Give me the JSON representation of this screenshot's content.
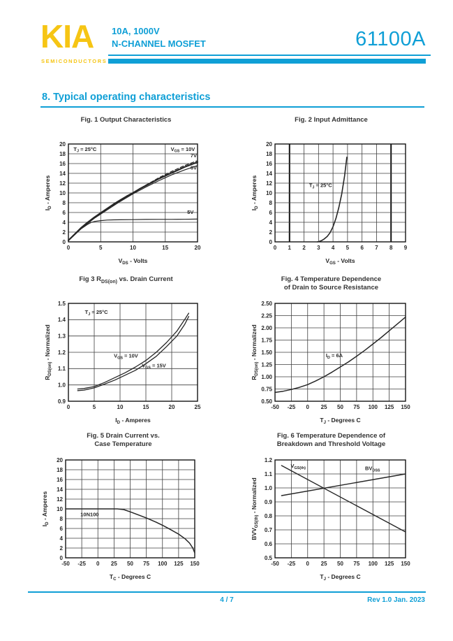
{
  "header": {
    "logo": "KIA",
    "logo_sub": "SEMICONDUCTORS",
    "subtitle_line1": "10A,  1000V",
    "subtitle_line2": "N-CHANNEL MOSFET",
    "part_number": "61100A"
  },
  "section_title": "8. Typical operating characteristics",
  "footer": {
    "page": "4 / 7",
    "revision": "Rev 1.0 Jan. 2023"
  },
  "colors": {
    "accent_cyan": "#0f9fd6",
    "brand_yellow": "#f6c514",
    "chart_ink": "#262626",
    "chart_grid": "#3f3f3f"
  },
  "chart_data": [
    {
      "type": "line",
      "title": "Fig. 1  Output Characteristics",
      "xlabel": "V~DS~ - Volts",
      "ylabel": "I~D~ - Amperes",
      "xlim": [
        0,
        20
      ],
      "ylim": [
        0,
        20
      ],
      "xticks": [
        0,
        5,
        10,
        15,
        20
      ],
      "yticks": [
        0,
        2,
        4,
        6,
        8,
        10,
        12,
        14,
        16,
        18,
        20
      ],
      "xdec": 0,
      "ydec": 0,
      "series": [
        {
          "name": "VGS = 10V",
          "width": 2.2,
          "dash": false,
          "points": [
            [
              0,
              0.3
            ],
            [
              1,
              1.6
            ],
            [
              2,
              2.9
            ],
            [
              3,
              4.0
            ],
            [
              4,
              5.0
            ],
            [
              5,
              5.9
            ],
            [
              6,
              6.8
            ],
            [
              7,
              7.7
            ],
            [
              8,
              8.5
            ],
            [
              9,
              9.3
            ],
            [
              10,
              10.0
            ],
            [
              11,
              10.8
            ],
            [
              12,
              11.5
            ],
            [
              13,
              12.2
            ],
            [
              14,
              12.9
            ],
            [
              15,
              13.5
            ],
            [
              16,
              14.1
            ],
            [
              17,
              14.7
            ],
            [
              18,
              15.3
            ],
            [
              19,
              15.8
            ],
            [
              20,
              16.3
            ]
          ]
        },
        {
          "name": "VGS = 7V",
          "width": 1.2,
          "dash": true,
          "points": [
            [
              0,
              0.3
            ],
            [
              2,
              2.8
            ],
            [
              4,
              4.9
            ],
            [
              6,
              6.7
            ],
            [
              8,
              8.4
            ],
            [
              10,
              10.0
            ],
            [
              12,
              11.6
            ],
            [
              14,
              13.1
            ],
            [
              16,
              14.4
            ],
            [
              18,
              15.6
            ],
            [
              20,
              16.6
            ]
          ]
        },
        {
          "name": "VGS = 6V",
          "width": 1.2,
          "dash": false,
          "points": [
            [
              0,
              0.3
            ],
            [
              2,
              2.75
            ],
            [
              4,
              4.8
            ],
            [
              6,
              6.55
            ],
            [
              8,
              8.25
            ],
            [
              10,
              9.8
            ],
            [
              12,
              11.2
            ],
            [
              14,
              12.5
            ],
            [
              16,
              13.7
            ],
            [
              18,
              14.7
            ],
            [
              20,
              15.6
            ]
          ]
        },
        {
          "name": "VGS = 5V",
          "width": 1.2,
          "dash": false,
          "points": [
            [
              0,
              0.3
            ],
            [
              1,
              1.5
            ],
            [
              2,
              2.7
            ],
            [
              3,
              3.6
            ],
            [
              3.5,
              3.95
            ],
            [
              4,
              4.15
            ],
            [
              5,
              4.35
            ],
            [
              6,
              4.45
            ],
            [
              7,
              4.5
            ],
            [
              8,
              4.52
            ],
            [
              10,
              4.55
            ],
            [
              12,
              4.58
            ],
            [
              14,
              4.6
            ],
            [
              16,
              4.6
            ],
            [
              18,
              4.62
            ],
            [
              20,
              4.65
            ]
          ]
        }
      ],
      "annotations": [
        {
          "text": "T~J~ = 25°C",
          "x": 0.8,
          "y": 18.6,
          "anchor": "start"
        },
        {
          "text": "V~GS~ = 10V",
          "x": 19.6,
          "y": 18.6,
          "anchor": "end"
        },
        {
          "text": "7V",
          "x": 19.9,
          "y": 17.3,
          "anchor": "end"
        },
        {
          "text": "6V",
          "x": 19.9,
          "y": 14.8,
          "anchor": "end"
        },
        {
          "text": "5V",
          "x": 19.4,
          "y": 5.7,
          "anchor": "end"
        }
      ]
    },
    {
      "type": "line",
      "title": "Fig. 2   Input Admittance",
      "xlabel": "V~GS~ - Volts",
      "ylabel": "I~D~ - Amperes",
      "xlim": [
        0,
        9
      ],
      "ylim": [
        0,
        20
      ],
      "xticks": [
        0,
        1,
        2,
        3,
        4,
        5,
        6,
        7,
        8,
        9
      ],
      "yticks": [
        0,
        2,
        4,
        6,
        8,
        10,
        12,
        14,
        16,
        18,
        20
      ],
      "x_bold": [
        1,
        8
      ],
      "xdec": 0,
      "ydec": 0,
      "series": [
        {
          "name": "ID vs VGS",
          "width": 1.6,
          "dash": false,
          "points": [
            [
              2.9,
              0.0
            ],
            [
              3.0,
              0.05
            ],
            [
              3.2,
              0.25
            ],
            [
              3.4,
              0.6
            ],
            [
              3.6,
              1.1
            ],
            [
              3.8,
              1.9
            ],
            [
              4.0,
              3.1
            ],
            [
              4.2,
              4.8
            ],
            [
              4.4,
              7.0
            ],
            [
              4.6,
              9.8
            ],
            [
              4.8,
              13.5
            ],
            [
              4.95,
              17.3
            ]
          ]
        }
      ],
      "annotations": [
        {
          "text": "T~J~ = 25°C",
          "x": 2.35,
          "y": 11.2,
          "anchor": "start"
        }
      ]
    },
    {
      "type": "line",
      "title": "Fig  3  R~DS(on)~ vs. Drain Current",
      "xlabel": "I~D~ - Amperes",
      "ylabel": "R~DS(on)~ - Normalized",
      "xlim": [
        0,
        25
      ],
      "ylim": [
        0.9,
        1.5
      ],
      "xticks": [
        0,
        5,
        10,
        15,
        20,
        25
      ],
      "yticks": [
        0.9,
        1.0,
        1.1,
        1.2,
        1.3,
        1.4,
        1.5
      ],
      "xdec": 0,
      "ydec": 1,
      "series": [
        {
          "name": "VGS = 10V",
          "width": 1.3,
          "dash": false,
          "points": [
            [
              1.8,
              0.975
            ],
            [
              3,
              0.978
            ],
            [
              5,
              0.99
            ],
            [
              7,
              1.015
            ],
            [
              9,
              1.045
            ],
            [
              11,
              1.075
            ],
            [
              13,
              1.11
            ],
            [
              15,
              1.15
            ],
            [
              17,
              1.2
            ],
            [
              19,
              1.26
            ],
            [
              21,
              1.33
            ],
            [
              22.5,
              1.4
            ],
            [
              23.3,
              1.44
            ]
          ]
        },
        {
          "name": "VGS = 15V",
          "width": 1.3,
          "dash": false,
          "points": [
            [
              1.8,
              0.965
            ],
            [
              3,
              0.968
            ],
            [
              5,
              0.982
            ],
            [
              7,
              1.005
            ],
            [
              9,
              1.03
            ],
            [
              11,
              1.06
            ],
            [
              13,
              1.09
            ],
            [
              15,
              1.13
            ],
            [
              17,
              1.175
            ],
            [
              19,
              1.235
            ],
            [
              21,
              1.3
            ],
            [
              22.5,
              1.37
            ],
            [
              23.3,
              1.42
            ]
          ]
        }
      ],
      "annotations": [
        {
          "text": "T~J~ = 25°C",
          "x": 3.2,
          "y": 1.435,
          "anchor": "start"
        },
        {
          "text": "V~GS~ = 10V",
          "x": 8.8,
          "y": 1.168,
          "anchor": "start"
        },
        {
          "text": "V~GS~ = 15V",
          "x": 14.2,
          "y": 1.108,
          "anchor": "start"
        }
      ]
    },
    {
      "type": "line",
      "title": "Fig. 4   Temperature Dependence\nof Drain to Source Resistance",
      "xlabel": "T~J~ - Degrees C",
      "ylabel": "R~DS(on)~ - Normalized",
      "xlim": [
        -50,
        150
      ],
      "ylim": [
        0.5,
        2.5
      ],
      "xticks": [
        -50,
        -25,
        0,
        25,
        50,
        75,
        100,
        125,
        150
      ],
      "yticks": [
        0.5,
        0.75,
        1.0,
        1.25,
        1.5,
        1.75,
        2.0,
        2.25,
        2.5
      ],
      "xdec": 0,
      "ydec": 2,
      "series": [
        {
          "name": "RDS(on) vs TJ",
          "width": 1.5,
          "dash": false,
          "points": [
            [
              -50,
              0.68
            ],
            [
              -37.5,
              0.705
            ],
            [
              -25,
              0.74
            ],
            [
              -12.5,
              0.785
            ],
            [
              0,
              0.84
            ],
            [
              12.5,
              0.915
            ],
            [
              25,
              1.0
            ],
            [
              37.5,
              1.095
            ],
            [
              50,
              1.2
            ],
            [
              62.5,
              1.305
            ],
            [
              75,
              1.42
            ],
            [
              87.5,
              1.54
            ],
            [
              100,
              1.67
            ],
            [
              112.5,
              1.8
            ],
            [
              125,
              1.94
            ],
            [
              137.5,
              2.08
            ],
            [
              150,
              2.22
            ]
          ]
        }
      ],
      "annotations": [
        {
          "text": "I~D~ = 6A",
          "x": 28,
          "y": 1.4,
          "anchor": "start"
        }
      ]
    },
    {
      "type": "line",
      "title": "Fig. 5  Drain Current vs.\nCase Temperature",
      "xlabel": "T~C~ - Degrees C",
      "ylabel": "I~D~ - Amperes",
      "xlim": [
        -50,
        150
      ],
      "ylim": [
        0,
        20
      ],
      "xticks": [
        -50,
        -25,
        0,
        25,
        50,
        75,
        100,
        125,
        150
      ],
      "yticks": [
        0,
        2,
        4,
        6,
        8,
        10,
        12,
        14,
        16,
        18,
        20
      ],
      "xdec": 0,
      "ydec": 0,
      "series": [
        {
          "name": "10N100",
          "width": 1.5,
          "dash": false,
          "points": [
            [
              -50,
              10
            ],
            [
              0,
              10
            ],
            [
              30,
              10
            ],
            [
              40,
              9.85
            ],
            [
              50,
              9.4
            ],
            [
              60,
              8.9
            ],
            [
              75,
              8.15
            ],
            [
              90,
              7.3
            ],
            [
              100,
              6.65
            ],
            [
              110,
              5.95
            ],
            [
              125,
              4.85
            ],
            [
              135,
              3.9
            ],
            [
              142,
              3.0
            ],
            [
              147,
              2.0
            ],
            [
              150,
              1.0
            ]
          ]
        }
      ],
      "annotations": [
        {
          "text": "10N100",
          "x": -27,
          "y": 8.5,
          "anchor": "start"
        }
      ]
    },
    {
      "type": "line",
      "title": "Fig. 6   Temperature Dependence of\nBreakdown and Threshold Voltage",
      "xlabel": "T~J~ - Degrees C",
      "ylabel": "BVV~GS(th)~ - Normalized",
      "xlim": [
        -50,
        150
      ],
      "ylim": [
        0.5,
        1.2
      ],
      "xticks": [
        -50,
        -25,
        0,
        25,
        50,
        75,
        100,
        125,
        150
      ],
      "yticks": [
        0.5,
        0.6,
        0.7,
        0.8,
        0.9,
        1.0,
        1.1,
        1.2
      ],
      "xdec": 0,
      "ydec": 1,
      "series": [
        {
          "name": "VGS(th)",
          "width": 1.4,
          "dash": false,
          "points": [
            [
              -40,
              1.16
            ],
            [
              150,
              0.685
            ]
          ]
        },
        {
          "name": "BVDSS",
          "width": 1.4,
          "dash": false,
          "points": [
            [
              -40,
              0.945
            ],
            [
              150,
              1.1
            ]
          ]
        }
      ],
      "annotations": [
        {
          "text": "V~GS(th)~",
          "x": -26,
          "y": 1.145,
          "anchor": "start"
        },
        {
          "text": "BV~DSS~",
          "x": 88,
          "y": 1.128,
          "anchor": "start"
        }
      ]
    }
  ]
}
